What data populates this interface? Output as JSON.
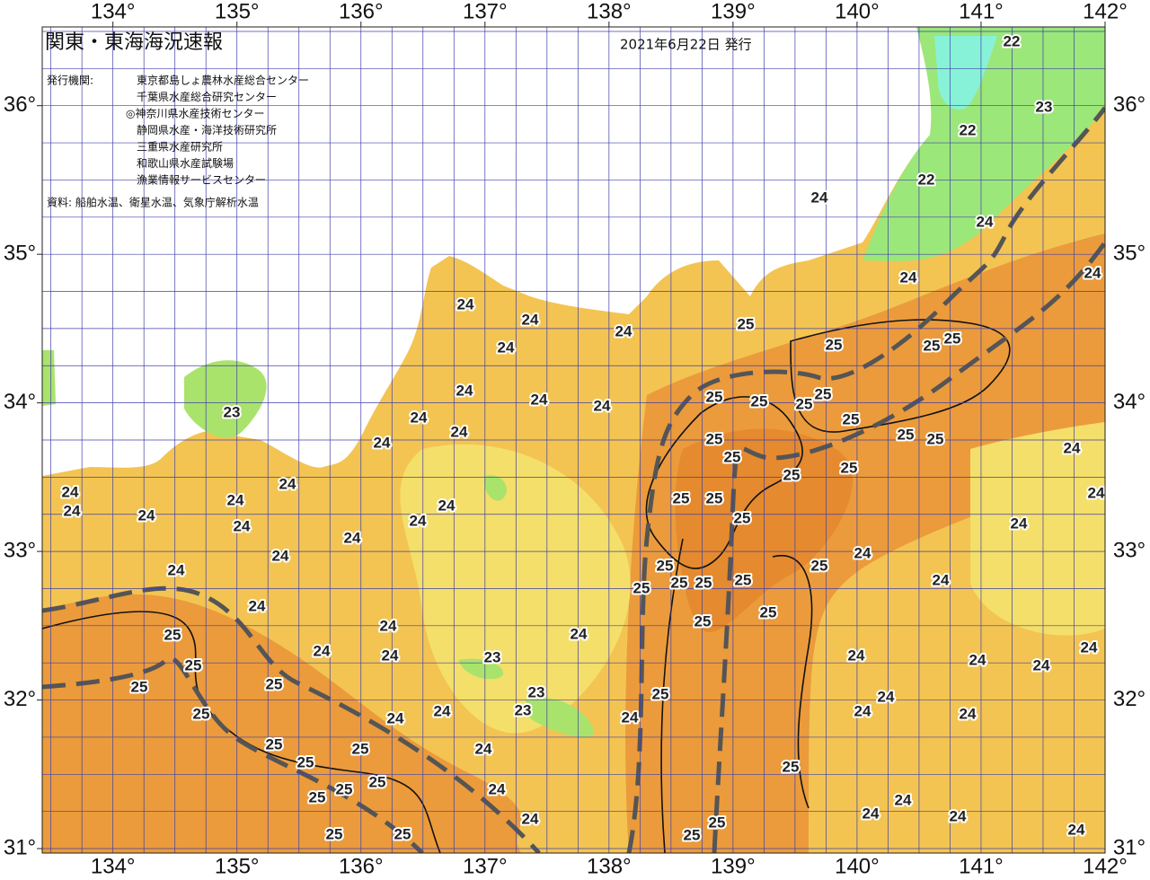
{
  "header": {
    "title": "関東・東海海況速報",
    "date": "2021年6月22日 発行"
  },
  "agencies": {
    "label": "発行機関:",
    "items": [
      "東京都島しょ農林水産総合センター",
      "千葉県水産総合研究センター",
      "◎神奈川県水産技術センター",
      "静岡県水産・海洋技術研究所",
      "三重県水産研究所",
      "和歌山県水産試験場",
      "漁業情報サービスセンター"
    ]
  },
  "source": "資料: 船舶水温、衛星水温、気象庁解析水温",
  "map": {
    "lon_range": [
      133.43,
      142
    ],
    "lat_range": [
      30.97,
      36.53
    ],
    "lon_ticks": [
      {
        "value": 134,
        "label": "134°"
      },
      {
        "value": 135,
        "label": "135°"
      },
      {
        "value": 136,
        "label": "136°"
      },
      {
        "value": 137,
        "label": "137°"
      },
      {
        "value": 138,
        "label": "138°"
      },
      {
        "value": 139,
        "label": "139°"
      },
      {
        "value": 140,
        "label": "140°"
      },
      {
        "value": 141,
        "label": "141°"
      },
      {
        "value": 142,
        "label": "142°"
      }
    ],
    "lat_ticks": [
      {
        "value": 31,
        "label": "31°"
      },
      {
        "value": 32,
        "label": "32°"
      },
      {
        "value": 33,
        "label": "33°"
      },
      {
        "value": 34,
        "label": "34°"
      },
      {
        "value": 35,
        "label": "35°"
      },
      {
        "value": 36,
        "label": "36°"
      }
    ],
    "contour_labels": [
      24,
      24,
      24,
      24,
      24,
      24,
      24,
      24,
      24,
      24,
      23,
      24,
      24,
      24,
      24,
      24,
      24,
      24,
      24,
      24,
      24,
      24,
      24,
      25,
      25,
      25,
      25,
      25,
      24,
      24,
      24,
      23,
      23,
      23,
      24,
      24,
      24,
      24,
      25,
      24,
      24,
      24,
      25,
      25,
      25,
      25,
      25,
      25,
      25,
      25,
      25,
      25,
      25,
      25,
      25,
      25,
      25,
      25,
      25,
      25,
      25,
      25,
      25,
      25,
      25,
      25,
      25,
      25,
      25,
      25,
      25,
      25,
      25,
      25,
      24,
      25,
      25,
      24,
      24,
      24,
      24,
      24,
      24,
      24,
      24,
      22,
      22,
      23,
      22,
      24,
      24,
      24,
      24,
      24,
      24,
      24,
      25,
      24,
      24,
      24,
      25,
      25,
      24
    ]
  }
}
